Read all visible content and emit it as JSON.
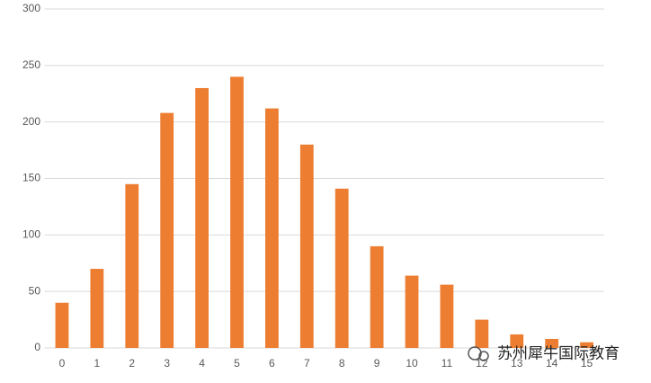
{
  "chart_data": {
    "type": "bar",
    "categories": [
      "0",
      "1",
      "2",
      "3",
      "4",
      "5",
      "6",
      "7",
      "8",
      "9",
      "10",
      "11",
      "12",
      "13",
      "14",
      "15"
    ],
    "values": [
      40,
      70,
      145,
      208,
      230,
      240,
      212,
      180,
      141,
      90,
      64,
      56,
      25,
      12,
      8,
      5
    ],
    "color": "#ed7d31",
    "ylim": [
      0,
      300
    ],
    "yticks": [
      0,
      50,
      100,
      150,
      200,
      250,
      300
    ],
    "grid": true,
    "watermark": "苏州犀牛国际教育"
  }
}
